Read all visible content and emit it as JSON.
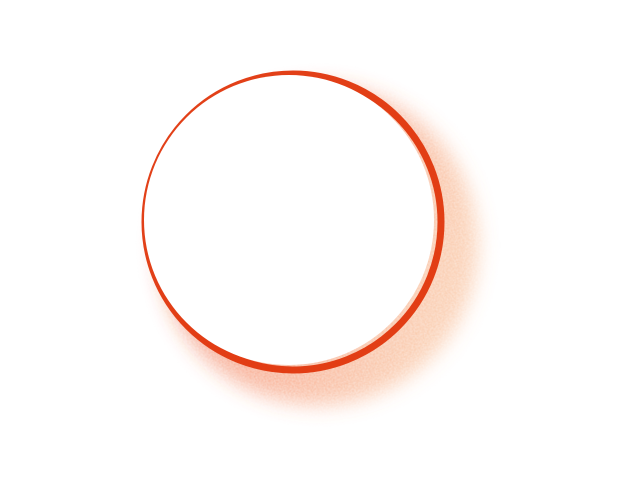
{
  "image": {
    "subject": "grainy-crescent-ring",
    "colors": {
      "background": "#ffffff",
      "ring_dark": "#e0360c",
      "ring_mid": "#f26a3a",
      "ring_light": "#f6a36d"
    }
  }
}
